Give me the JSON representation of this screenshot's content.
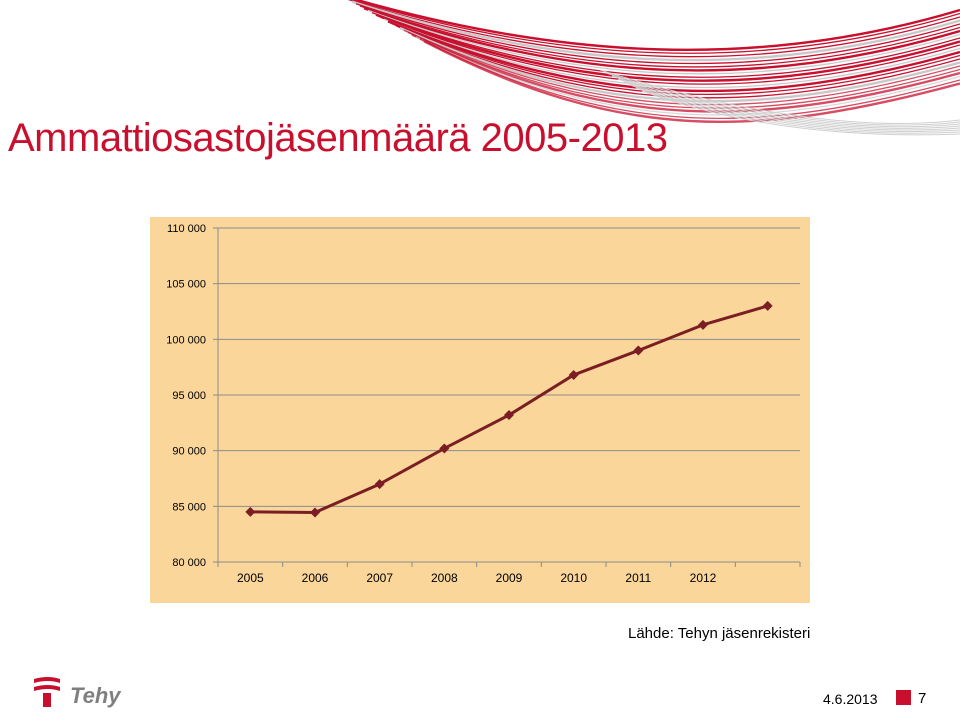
{
  "slide": {
    "title": "Ammattiosastojäsenmäärä 2005-2013",
    "source": "Lähde: Tehyn jäsenrekisteri",
    "date": "4.6.2013",
    "page_number": "7",
    "logo_text": "Tehy"
  },
  "colors": {
    "accent": "#c8102e",
    "plot_background": "#fad69a",
    "series_line": "#7b1e23",
    "gridline": "#8c8c8c"
  },
  "chart_data": {
    "type": "line",
    "title": "",
    "xlabel": "",
    "ylabel": "",
    "x": [
      "2005",
      "2006",
      "2007",
      "2008",
      "2009",
      "2010",
      "2011",
      "2012",
      ""
    ],
    "x_tick_labels": [
      "2005",
      "2006",
      "2007",
      "2008",
      "2009",
      "2010",
      "2011",
      "2012"
    ],
    "series": [
      {
        "values": [
          84500,
          84450,
          87000,
          90200,
          93200,
          96800,
          99000,
          101300,
          103000
        ]
      }
    ],
    "ylim": [
      80000,
      110000
    ],
    "yticks": [
      80000,
      85000,
      90000,
      95000,
      100000,
      105000,
      110000
    ],
    "ytick_labels": [
      "80 000",
      "85 000",
      "90 000",
      "95 000",
      "100 000",
      "105 000",
      "110 000"
    ],
    "grid": true,
    "marker": "diamond"
  }
}
